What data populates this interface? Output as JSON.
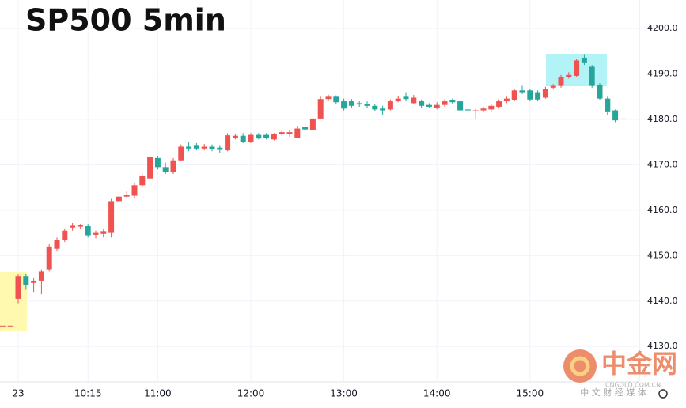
{
  "chart_data": {
    "type": "candlestick",
    "title": "SP500 5min",
    "categories": [
      null,
      null,
      "23",
      null,
      null,
      null,
      null,
      null,
      null,
      null,
      null,
      "10:15",
      null,
      null,
      null,
      null,
      null,
      null,
      null,
      null,
      "11:00",
      null,
      null,
      null,
      null,
      null,
      null,
      null,
      null,
      null,
      null,
      null,
      "12:00",
      null,
      null,
      null,
      null,
      null,
      null,
      null,
      null,
      null,
      null,
      null,
      "13:00",
      null,
      null,
      null,
      null,
      null,
      null,
      null,
      null,
      null,
      null,
      null,
      "14:00",
      null,
      null,
      null,
      null,
      null,
      null,
      null,
      null,
      null,
      null,
      null,
      "15:00",
      null,
      null,
      null,
      null,
      null,
      null,
      null,
      null,
      null,
      null,
      null,
      null
    ],
    "open": [
      4134.6,
      4134.6,
      4140.5,
      4145.5,
      4144,
      4144.5,
      4147,
      4151.5,
      4153.5,
      4156.2,
      4156.4,
      4156.5,
      4154.6,
      4154.8,
      4155,
      4162,
      4163,
      4163.2,
      4165.5,
      4167,
      4171.5,
      4169.5,
      4168.5,
      4171,
      4174,
      4174.2,
      4173.6,
      4174,
      4173.8,
      4173.2,
      4176,
      4176.4,
      4175,
      4176.6,
      4176.6,
      4175.6,
      4176.8,
      4176.8,
      4176,
      4178.4,
      4177.6,
      4180.2,
      4184.5,
      4185,
      4184,
      4184,
      4183.6,
      4183.4,
      4183,
      4182.4,
      4182.2,
      4184,
      4185,
      4183.6,
      4184,
      4183.2,
      4182.6,
      4183.2,
      4184.2,
      4184,
      4182.2,
      4181.8,
      4182,
      4182.2,
      4182.8,
      4184,
      4184.2,
      4186.4,
      4186.4,
      4186,
      4184.8,
      4187,
      4187.4,
      4189.4,
      4189.6,
      4193.6,
      4191.6,
      4187.6,
      4184.6,
      4182,
      4180.2
    ],
    "high": [
      4134.6,
      4134.6,
      4146,
      4146,
      4145,
      4147,
      4152.5,
      4154,
      4156,
      4157.2,
      4157,
      4157,
      4155.5,
      4156,
      4162.5,
      4163.5,
      4164.2,
      4166,
      4168,
      4172,
      4172,
      4170.5,
      4171.5,
      4174.5,
      4175,
      4174.8,
      4174.6,
      4174.5,
      4174.2,
      4177,
      4176.8,
      4177,
      4177,
      4177,
      4177,
      4177,
      4177.6,
      4177.6,
      4178.6,
      4179,
      4180.4,
      4185,
      4185.5,
      4185.3,
      4184.6,
      4184.5,
      4184,
      4184,
      4183.4,
      4183,
      4184.4,
      4185.2,
      4186,
      4185.4,
      4184.4,
      4183.6,
      4183.8,
      4184.4,
      4184.6,
      4184.2,
      4182.6,
      4182.4,
      4182.8,
      4183.4,
      4184.4,
      4185,
      4186.8,
      4187.4,
      4186.8,
      4186.4,
      4187.2,
      4187.8,
      4189.8,
      4190.4,
      4193.4,
      4194.4,
      4192,
      4188,
      4185,
      4182.2,
      4180.2
    ],
    "low": [
      4134.6,
      4134.6,
      4139.5,
      4142.5,
      4142,
      4141.5,
      4146.5,
      4151,
      4153,
      4155.5,
      4156,
      4154,
      4153.8,
      4154,
      4154,
      4161.8,
      4162.7,
      4162.5,
      4165,
      4166.8,
      4169,
      4168,
      4168,
      4170.8,
      4173,
      4173.2,
      4173.2,
      4173,
      4172.6,
      4173,
      4175.6,
      4174.8,
      4174.8,
      4175.6,
      4175.6,
      4175.4,
      4176.4,
      4176.2,
      4175.8,
      4177.4,
      4177.4,
      4180,
      4184,
      4183.5,
      4182,
      4182.6,
      4182.8,
      4182.6,
      4181.8,
      4181,
      4182,
      4183.8,
      4184,
      4183.4,
      4182.6,
      4182.5,
      4182.2,
      4182.8,
      4183.4,
      4181.8,
      4181.4,
      4180.2,
      4181.6,
      4181.6,
      4182.4,
      4183.6,
      4184,
      4185.6,
      4184,
      4184,
      4184.6,
      4186.8,
      4187,
      4189,
      4189.4,
      4192,
      4187,
      4184.2,
      4181,
      4179.4,
      4180.2
    ],
    "close": [
      4134.6,
      4134.6,
      4145.5,
      4143.5,
      4144.5,
      4146.5,
      4152,
      4153.5,
      4155.5,
      4156.6,
      4156.8,
      4154.5,
      4155,
      4155.4,
      4162,
      4163,
      4163.4,
      4165.5,
      4167.5,
      4171.8,
      4169.5,
      4168.5,
      4171,
      4174,
      4173.6,
      4173.6,
      4174,
      4173.5,
      4173.3,
      4176.5,
      4176.4,
      4175,
      4176.6,
      4175.8,
      4176,
      4176.8,
      4177.2,
      4177.2,
      4178,
      4177.8,
      4180.2,
      4184.5,
      4185,
      4183.8,
      4182.4,
      4183,
      4183.3,
      4183,
      4182.2,
      4182,
      4184,
      4184.6,
      4184.5,
      4184.8,
      4183,
      4182.8,
      4183.2,
      4184,
      4183.8,
      4182,
      4182,
      4182,
      4182.4,
      4183,
      4184,
      4184.6,
      4186.4,
      4186,
      4184.4,
      4184.4,
      4186.8,
      4187.4,
      4189.4,
      4189.8,
      4193,
      4192.4,
      4187.4,
      4184.6,
      4181.6,
      4179.8,
      4180.2
    ],
    "up_color": "#ef5350",
    "down_color": "#26a69a",
    "ylim": [
      4122.2,
      4206.3
    ],
    "yticks": [
      {
        "value": 4130,
        "label": "4130.0"
      },
      {
        "value": 4140,
        "label": "4140.0"
      },
      {
        "value": 4150,
        "label": "4150.0"
      },
      {
        "value": 4160,
        "label": "4160.0"
      },
      {
        "value": 4170,
        "label": "4170.0"
      },
      {
        "value": 4180,
        "label": "4180.0"
      },
      {
        "value": 4190,
        "label": "4190.0"
      },
      {
        "value": 4200,
        "label": "4200.0"
      }
    ],
    "grid": true
  },
  "watermark": {
    "brand": "中金网",
    "site": "CNGOLD.COM.CN",
    "tagline": "中 文 财 经 媒 体"
  }
}
